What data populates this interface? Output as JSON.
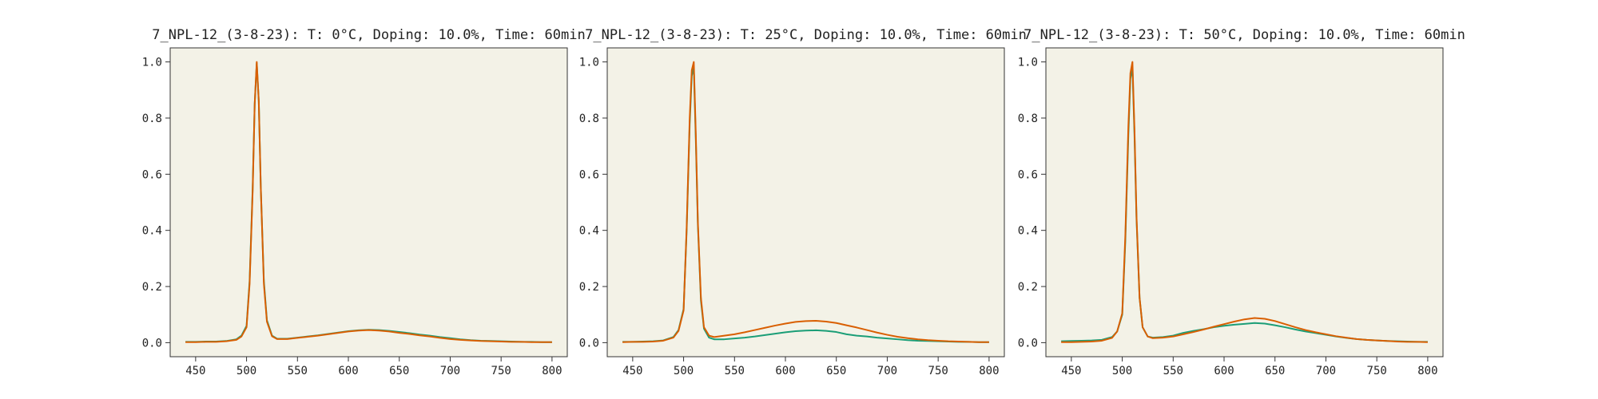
{
  "colors": {
    "background": "#ffffff",
    "plot_area": "#f3f2e7",
    "frame": "#333333",
    "series_teal": "#1b9e77",
    "series_orange": "#d95f02"
  },
  "chart_data": [
    {
      "type": "line",
      "title": "7_NPL-12_(3-8-23): T: 0°C, Doping: 10.0%, Time: 60min",
      "xlabel": "",
      "ylabel": "",
      "xlim": [
        425,
        815
      ],
      "ylim": [
        -0.05,
        1.05
      ],
      "xticks": [
        450,
        500,
        550,
        600,
        650,
        700,
        750,
        800
      ],
      "yticks": [
        0.0,
        0.2,
        0.4,
        0.6,
        0.8,
        1.0
      ],
      "ytick_labels": [
        "0.0",
        "0.2",
        "0.4",
        "0.6",
        "0.8",
        "1.0"
      ],
      "grid": false,
      "x": [
        440,
        450,
        460,
        470,
        480,
        490,
        495,
        500,
        503,
        506,
        508,
        510,
        512,
        514,
        517,
        520,
        525,
        530,
        540,
        550,
        560,
        570,
        580,
        590,
        600,
        610,
        620,
        630,
        640,
        650,
        660,
        670,
        680,
        690,
        700,
        710,
        720,
        730,
        740,
        750,
        760,
        770,
        780,
        790,
        800
      ],
      "series": [
        {
          "color": "#1b9e77",
          "values": [
            0.003,
            0.003,
            0.004,
            0.004,
            0.006,
            0.012,
            0.025,
            0.06,
            0.22,
            0.55,
            0.85,
            0.995,
            0.86,
            0.55,
            0.22,
            0.08,
            0.025,
            0.014,
            0.014,
            0.018,
            0.022,
            0.026,
            0.031,
            0.036,
            0.041,
            0.044,
            0.046,
            0.045,
            0.042,
            0.038,
            0.034,
            0.029,
            0.025,
            0.02,
            0.016,
            0.012,
            0.009,
            0.007,
            0.006,
            0.005,
            0.004,
            0.003,
            0.003,
            0.002,
            0.002
          ]
        },
        {
          "color": "#d95f02",
          "values": [
            0.002,
            0.002,
            0.003,
            0.003,
            0.005,
            0.01,
            0.022,
            0.055,
            0.21,
            0.54,
            0.85,
            1.0,
            0.86,
            0.55,
            0.21,
            0.075,
            0.023,
            0.013,
            0.013,
            0.017,
            0.021,
            0.025,
            0.03,
            0.035,
            0.04,
            0.043,
            0.045,
            0.043,
            0.04,
            0.035,
            0.031,
            0.026,
            0.022,
            0.017,
            0.013,
            0.01,
            0.008,
            0.006,
            0.005,
            0.004,
            0.003,
            0.003,
            0.002,
            0.002,
            0.002
          ]
        }
      ]
    },
    {
      "type": "line",
      "title": "7_NPL-12_(3-8-23): T: 25°C, Doping: 10.0%, Time: 60min",
      "xlabel": "",
      "ylabel": "",
      "xlim": [
        425,
        815
      ],
      "ylim": [
        -0.05,
        1.05
      ],
      "xticks": [
        450,
        500,
        550,
        600,
        650,
        700,
        750,
        800
      ],
      "yticks": [
        0.0,
        0.2,
        0.4,
        0.6,
        0.8,
        1.0
      ],
      "ytick_labels": [
        "0.0",
        "0.2",
        "0.4",
        "0.6",
        "0.8",
        "1.0"
      ],
      "grid": false,
      "x": [
        440,
        450,
        460,
        470,
        480,
        490,
        495,
        500,
        503,
        506,
        508,
        510,
        512,
        514,
        517,
        520,
        525,
        530,
        540,
        550,
        560,
        570,
        580,
        590,
        600,
        610,
        620,
        630,
        640,
        650,
        660,
        670,
        680,
        690,
        700,
        710,
        720,
        730,
        740,
        750,
        760,
        770,
        780,
        790,
        800
      ],
      "series": [
        {
          "color": "#1b9e77",
          "values": [
            0.003,
            0.003,
            0.004,
            0.005,
            0.008,
            0.02,
            0.045,
            0.12,
            0.4,
            0.78,
            0.95,
            0.98,
            0.72,
            0.42,
            0.15,
            0.05,
            0.018,
            0.012,
            0.012,
            0.015,
            0.018,
            0.022,
            0.027,
            0.032,
            0.037,
            0.041,
            0.043,
            0.044,
            0.042,
            0.038,
            0.03,
            0.025,
            0.022,
            0.018,
            0.015,
            0.012,
            0.009,
            0.007,
            0.006,
            0.005,
            0.004,
            0.003,
            0.003,
            0.002,
            0.002
          ]
        },
        {
          "color": "#d95f02",
          "values": [
            0.002,
            0.003,
            0.003,
            0.004,
            0.007,
            0.018,
            0.042,
            0.115,
            0.41,
            0.8,
            0.97,
            1.0,
            0.74,
            0.43,
            0.16,
            0.055,
            0.025,
            0.02,
            0.025,
            0.03,
            0.037,
            0.045,
            0.053,
            0.061,
            0.068,
            0.074,
            0.077,
            0.078,
            0.075,
            0.07,
            0.062,
            0.054,
            0.045,
            0.036,
            0.028,
            0.021,
            0.016,
            0.012,
            0.009,
            0.007,
            0.005,
            0.004,
            0.003,
            0.002,
            0.002
          ]
        }
      ]
    },
    {
      "type": "line",
      "title": "7_NPL-12_(3-8-23): T: 50°C, Doping: 10.0%, Time: 60min",
      "xlabel": "",
      "ylabel": "",
      "xlim": [
        425,
        815
      ],
      "ylim": [
        -0.05,
        1.05
      ],
      "xticks": [
        450,
        500,
        550,
        600,
        650,
        700,
        750,
        800
      ],
      "yticks": [
        0.0,
        0.2,
        0.4,
        0.6,
        0.8,
        1.0
      ],
      "ytick_labels": [
        "0.0",
        "0.2",
        "0.4",
        "0.6",
        "0.8",
        "1.0"
      ],
      "grid": false,
      "x": [
        440,
        450,
        460,
        470,
        480,
        490,
        495,
        500,
        503,
        506,
        508,
        510,
        512,
        514,
        517,
        520,
        525,
        530,
        540,
        550,
        560,
        570,
        580,
        590,
        600,
        610,
        620,
        630,
        640,
        650,
        660,
        670,
        680,
        690,
        700,
        710,
        720,
        730,
        740,
        750,
        760,
        770,
        780,
        790,
        800
      ],
      "series": [
        {
          "color": "#1b9e77",
          "values": [
            0.005,
            0.006,
            0.007,
            0.008,
            0.01,
            0.02,
            0.04,
            0.1,
            0.36,
            0.74,
            0.94,
            0.98,
            0.74,
            0.44,
            0.16,
            0.055,
            0.022,
            0.018,
            0.02,
            0.025,
            0.035,
            0.042,
            0.048,
            0.055,
            0.06,
            0.064,
            0.067,
            0.07,
            0.068,
            0.062,
            0.055,
            0.047,
            0.04,
            0.034,
            0.028,
            0.022,
            0.017,
            0.013,
            0.01,
            0.008,
            0.006,
            0.005,
            0.004,
            0.003,
            0.003
          ]
        },
        {
          "color": "#d95f02",
          "values": [
            0.002,
            0.002,
            0.003,
            0.004,
            0.007,
            0.017,
            0.04,
            0.105,
            0.38,
            0.77,
            0.96,
            1.0,
            0.76,
            0.45,
            0.16,
            0.055,
            0.022,
            0.016,
            0.018,
            0.022,
            0.03,
            0.038,
            0.047,
            0.057,
            0.066,
            0.075,
            0.083,
            0.088,
            0.085,
            0.077,
            0.066,
            0.055,
            0.045,
            0.037,
            0.03,
            0.023,
            0.018,
            0.013,
            0.01,
            0.008,
            0.006,
            0.004,
            0.003,
            0.003,
            0.002
          ]
        }
      ]
    }
  ]
}
